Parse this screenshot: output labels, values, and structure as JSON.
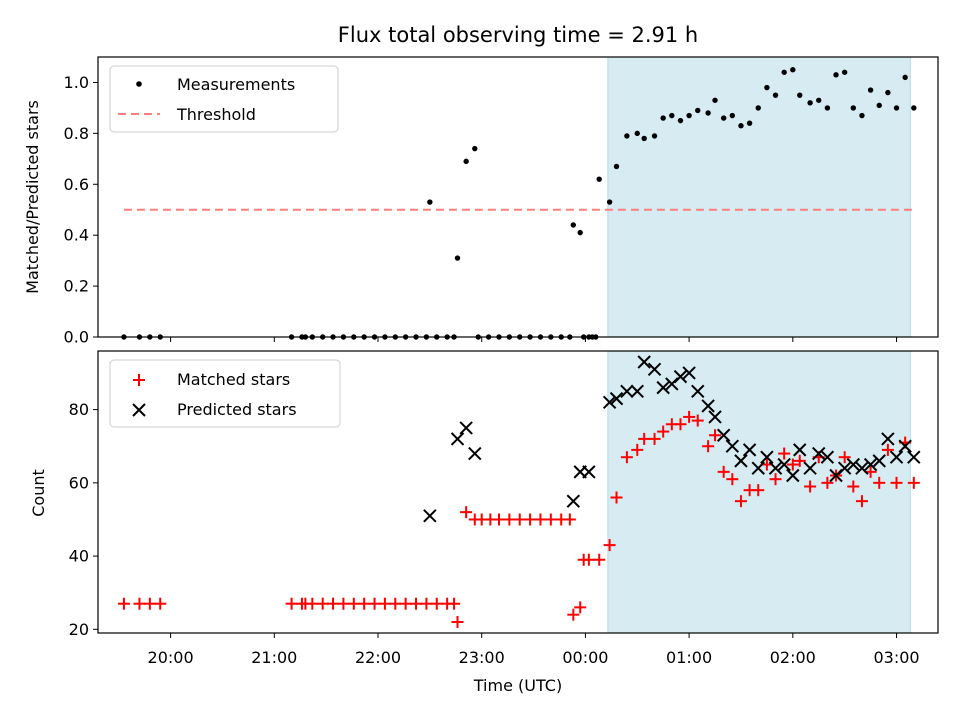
{
  "chart_data": [
    {
      "type": "scatter",
      "title": "Flux total observing time = 2.91 h",
      "xlabel": "",
      "ylabel": "Matched/Predicted stars",
      "ylim": [
        0,
        1.1
      ],
      "yticks": [
        "0.0",
        "0.2",
        "0.4",
        "0.6",
        "0.8",
        "1.0"
      ],
      "legend": "top-left",
      "grid": false,
      "shaded_interval": {
        "from": "00:13",
        "to": "03:08",
        "color": "#add8e6"
      },
      "series": [
        {
          "name": "Measurements",
          "marker": "dot",
          "color": "#000000",
          "points": [
            [
              "19:33",
              0.0
            ],
            [
              "19:42",
              0.0
            ],
            [
              "19:48",
              0.0
            ],
            [
              "19:54",
              0.0
            ],
            [
              "21:10",
              0.0
            ],
            [
              "21:16",
              0.0
            ],
            [
              "21:18",
              0.0
            ],
            [
              "21:22",
              0.0
            ],
            [
              "21:28",
              0.0
            ],
            [
              "21:34",
              0.0
            ],
            [
              "21:40",
              0.0
            ],
            [
              "21:46",
              0.0
            ],
            [
              "21:52",
              0.0
            ],
            [
              "21:58",
              0.0
            ],
            [
              "22:04",
              0.0
            ],
            [
              "22:10",
              0.0
            ],
            [
              "22:16",
              0.0
            ],
            [
              "22:22",
              0.0
            ],
            [
              "22:28",
              0.0
            ],
            [
              "22:30",
              0.53
            ],
            [
              "22:34",
              0.0
            ],
            [
              "22:40",
              0.0
            ],
            [
              "22:44",
              0.0
            ],
            [
              "22:46",
              0.31
            ],
            [
              "22:51",
              0.69
            ],
            [
              "22:56",
              0.74
            ],
            [
              "22:58",
              0.0
            ],
            [
              "23:04",
              0.0
            ],
            [
              "23:10",
              0.0
            ],
            [
              "23:16",
              0.0
            ],
            [
              "23:22",
              0.0
            ],
            [
              "23:28",
              0.0
            ],
            [
              "23:34",
              0.0
            ],
            [
              "23:40",
              0.0
            ],
            [
              "23:46",
              0.0
            ],
            [
              "23:51",
              0.0
            ],
            [
              "23:53",
              0.44
            ],
            [
              "23:57",
              0.41
            ],
            [
              "23:59",
              0.0
            ],
            [
              "00:02",
              0.0
            ],
            [
              "00:04",
              0.0
            ],
            [
              "00:06",
              0.0
            ],
            [
              "00:08",
              0.62
            ],
            [
              "00:14",
              0.53
            ],
            [
              "00:18",
              0.67
            ],
            [
              "00:24",
              0.79
            ],
            [
              "00:30",
              0.8
            ],
            [
              "00:34",
              0.78
            ],
            [
              "00:40",
              0.79
            ],
            [
              "00:45",
              0.86
            ],
            [
              "00:50",
              0.87
            ],
            [
              "00:55",
              0.85
            ],
            [
              "01:00",
              0.87
            ],
            [
              "01:05",
              0.89
            ],
            [
              "01:11",
              0.88
            ],
            [
              "01:15",
              0.93
            ],
            [
              "01:20",
              0.86
            ],
            [
              "01:25",
              0.87
            ],
            [
              "01:30",
              0.83
            ],
            [
              "01:35",
              0.84
            ],
            [
              "01:40",
              0.9
            ],
            [
              "01:45",
              0.98
            ],
            [
              "01:50",
              0.95
            ],
            [
              "01:55",
              1.04
            ],
            [
              "02:00",
              1.05
            ],
            [
              "02:04",
              0.95
            ],
            [
              "02:10",
              0.92
            ],
            [
              "02:15",
              0.93
            ],
            [
              "02:20",
              0.9
            ],
            [
              "02:25",
              1.03
            ],
            [
              "02:30",
              1.04
            ],
            [
              "02:35",
              0.9
            ],
            [
              "02:40",
              0.87
            ],
            [
              "02:45",
              0.97
            ],
            [
              "02:50",
              0.91
            ],
            [
              "02:55",
              0.96
            ],
            [
              "03:00",
              0.9
            ],
            [
              "03:05",
              1.02
            ],
            [
              "03:10",
              0.9
            ]
          ]
        },
        {
          "name": "Threshold",
          "type": "line",
          "style": "dashed",
          "color": "#ff7f7f",
          "points": [
            [
              "19:33",
              0.5
            ],
            [
              "03:10",
              0.5
            ]
          ]
        }
      ]
    },
    {
      "type": "scatter",
      "title": "",
      "xlabel": "Time (UTC)",
      "ylabel": "Count",
      "ylim": [
        19,
        96
      ],
      "yticks": [
        "20",
        "40",
        "60",
        "80"
      ],
      "xticks": [
        "20:00",
        "21:00",
        "22:00",
        "23:00",
        "00:00",
        "01:00",
        "02:00",
        "03:00"
      ],
      "legend": "top-left",
      "grid": false,
      "shaded_interval": {
        "from": "00:13",
        "to": "03:08",
        "color": "#add8e6"
      },
      "series": [
        {
          "name": "Matched stars",
          "marker": "plus",
          "color": "#ff0000",
          "points": [
            [
              "19:33",
              27
            ],
            [
              "19:42",
              27
            ],
            [
              "19:48",
              27
            ],
            [
              "19:54",
              27
            ],
            [
              "21:10",
              27
            ],
            [
              "21:16",
              27
            ],
            [
              "21:18",
              27
            ],
            [
              "21:22",
              27
            ],
            [
              "21:28",
              27
            ],
            [
              "21:34",
              27
            ],
            [
              "21:40",
              27
            ],
            [
              "21:46",
              27
            ],
            [
              "21:52",
              27
            ],
            [
              "21:58",
              27
            ],
            [
              "22:04",
              27
            ],
            [
              "22:10",
              27
            ],
            [
              "22:16",
              27
            ],
            [
              "22:22",
              27
            ],
            [
              "22:28",
              27
            ],
            [
              "22:34",
              27
            ],
            [
              "22:40",
              27
            ],
            [
              "22:44",
              27
            ],
            [
              "22:46",
              22
            ],
            [
              "22:51",
              52
            ],
            [
              "22:56",
              50
            ],
            [
              "23:00",
              50
            ],
            [
              "23:05",
              50
            ],
            [
              "23:10",
              50
            ],
            [
              "23:16",
              50
            ],
            [
              "23:22",
              50
            ],
            [
              "23:28",
              50
            ],
            [
              "23:34",
              50
            ],
            [
              "23:40",
              50
            ],
            [
              "23:46",
              50
            ],
            [
              "23:51",
              50
            ],
            [
              "23:53",
              24
            ],
            [
              "23:57",
              26
            ],
            [
              "23:59",
              39
            ],
            [
              "00:02",
              39
            ],
            [
              "00:08",
              39
            ],
            [
              "00:14",
              43
            ],
            [
              "00:18",
              56
            ],
            [
              "00:24",
              67
            ],
            [
              "00:30",
              69
            ],
            [
              "00:34",
              72
            ],
            [
              "00:40",
              72
            ],
            [
              "00:45",
              74
            ],
            [
              "00:50",
              76
            ],
            [
              "00:55",
              76
            ],
            [
              "01:00",
              78
            ],
            [
              "01:05",
              77
            ],
            [
              "01:11",
              70
            ],
            [
              "01:15",
              73
            ],
            [
              "01:20",
              63
            ],
            [
              "01:25",
              61
            ],
            [
              "01:30",
              55
            ],
            [
              "01:35",
              58
            ],
            [
              "01:40",
              58
            ],
            [
              "01:45",
              65
            ],
            [
              "01:50",
              61
            ],
            [
              "01:55",
              68
            ],
            [
              "02:00",
              65
            ],
            [
              "02:04",
              66
            ],
            [
              "02:10",
              59
            ],
            [
              "02:15",
              67
            ],
            [
              "02:20",
              60
            ],
            [
              "02:25",
              62
            ],
            [
              "02:30",
              67
            ],
            [
              "02:35",
              59
            ],
            [
              "02:40",
              55
            ],
            [
              "02:45",
              63
            ],
            [
              "02:50",
              60
            ],
            [
              "02:55",
              69
            ],
            [
              "03:00",
              60
            ],
            [
              "03:05",
              71
            ],
            [
              "03:10",
              60
            ]
          ]
        },
        {
          "name": "Predicted stars",
          "marker": "x",
          "color": "#000000",
          "points": [
            [
              "22:30",
              51
            ],
            [
              "22:46",
              72
            ],
            [
              "22:51",
              75
            ],
            [
              "22:56",
              68
            ],
            [
              "23:53",
              55
            ],
            [
              "23:57",
              63
            ],
            [
              "00:02",
              63
            ],
            [
              "00:14",
              82
            ],
            [
              "00:18",
              83
            ],
            [
              "00:24",
              85
            ],
            [
              "00:30",
              85
            ],
            [
              "00:34",
              93
            ],
            [
              "00:40",
              91
            ],
            [
              "00:45",
              86
            ],
            [
              "00:50",
              87
            ],
            [
              "00:55",
              89
            ],
            [
              "01:00",
              90
            ],
            [
              "01:05",
              85
            ],
            [
              "01:11",
              81
            ],
            [
              "01:15",
              78
            ],
            [
              "01:20",
              73
            ],
            [
              "01:25",
              70
            ],
            [
              "01:30",
              66
            ],
            [
              "01:35",
              69
            ],
            [
              "01:40",
              64
            ],
            [
              "01:45",
              67
            ],
            [
              "01:50",
              64
            ],
            [
              "01:55",
              65
            ],
            [
              "02:00",
              62
            ],
            [
              "02:04",
              69
            ],
            [
              "02:10",
              64
            ],
            [
              "02:15",
              68
            ],
            [
              "02:20",
              67
            ],
            [
              "02:25",
              62
            ],
            [
              "02:30",
              64
            ],
            [
              "02:35",
              65
            ],
            [
              "02:40",
              64
            ],
            [
              "02:45",
              65
            ],
            [
              "02:50",
              66
            ],
            [
              "02:55",
              72
            ],
            [
              "03:00",
              67
            ],
            [
              "03:05",
              70
            ],
            [
              "03:10",
              67
            ]
          ]
        }
      ]
    }
  ]
}
